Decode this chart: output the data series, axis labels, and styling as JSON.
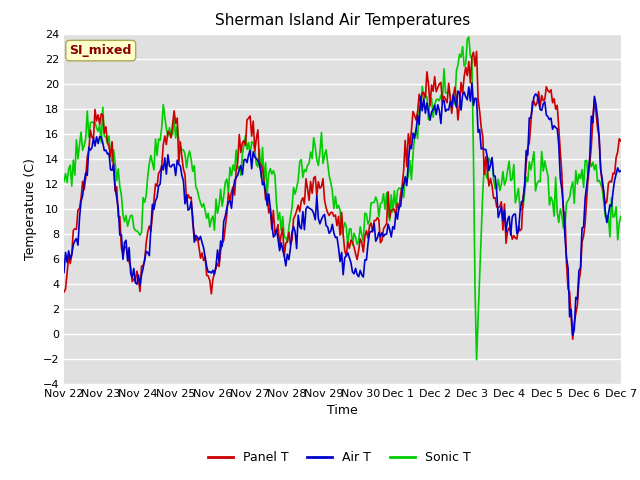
{
  "title": "Sherman Island Air Temperatures",
  "ylabel": "Temperature (C)",
  "xlabel": "Time",
  "ylim": [
    -4,
    24
  ],
  "yticks": [
    -4,
    -2,
    0,
    2,
    4,
    6,
    8,
    10,
    12,
    14,
    16,
    18,
    20,
    22,
    24
  ],
  "xtick_labels": [
    "Nov 22",
    "Nov 23",
    "Nov 24",
    "Nov 25",
    "Nov 26",
    "Nov 27",
    "Nov 28",
    "Nov 29",
    "Nov 30",
    "Dec 1",
    "Dec 2",
    "Dec 3",
    "Dec 4",
    "Dec 5",
    "Dec 6",
    "Dec 7"
  ],
  "xtick_positions": [
    0,
    1,
    2,
    3,
    4,
    5,
    6,
    7,
    8,
    9,
    10,
    11,
    12,
    13,
    14,
    15
  ],
  "panel_color": "#cc0000",
  "air_color": "#0000cc",
  "sonic_color": "#00cc00",
  "fig_bg_color": "#ffffff",
  "plot_bg_color": "#e0e0e0",
  "grid_color": "#f0f0f0",
  "legend_labels": [
    "Panel T",
    "Air T",
    "Sonic T"
  ],
  "watermark_text": "SI_mixed",
  "watermark_color": "#8b0000",
  "watermark_bg": "#ffffcc",
  "watermark_edge": "#aaa855",
  "line_width": 1.2,
  "title_fontsize": 11,
  "label_fontsize": 9,
  "tick_fontsize": 8
}
